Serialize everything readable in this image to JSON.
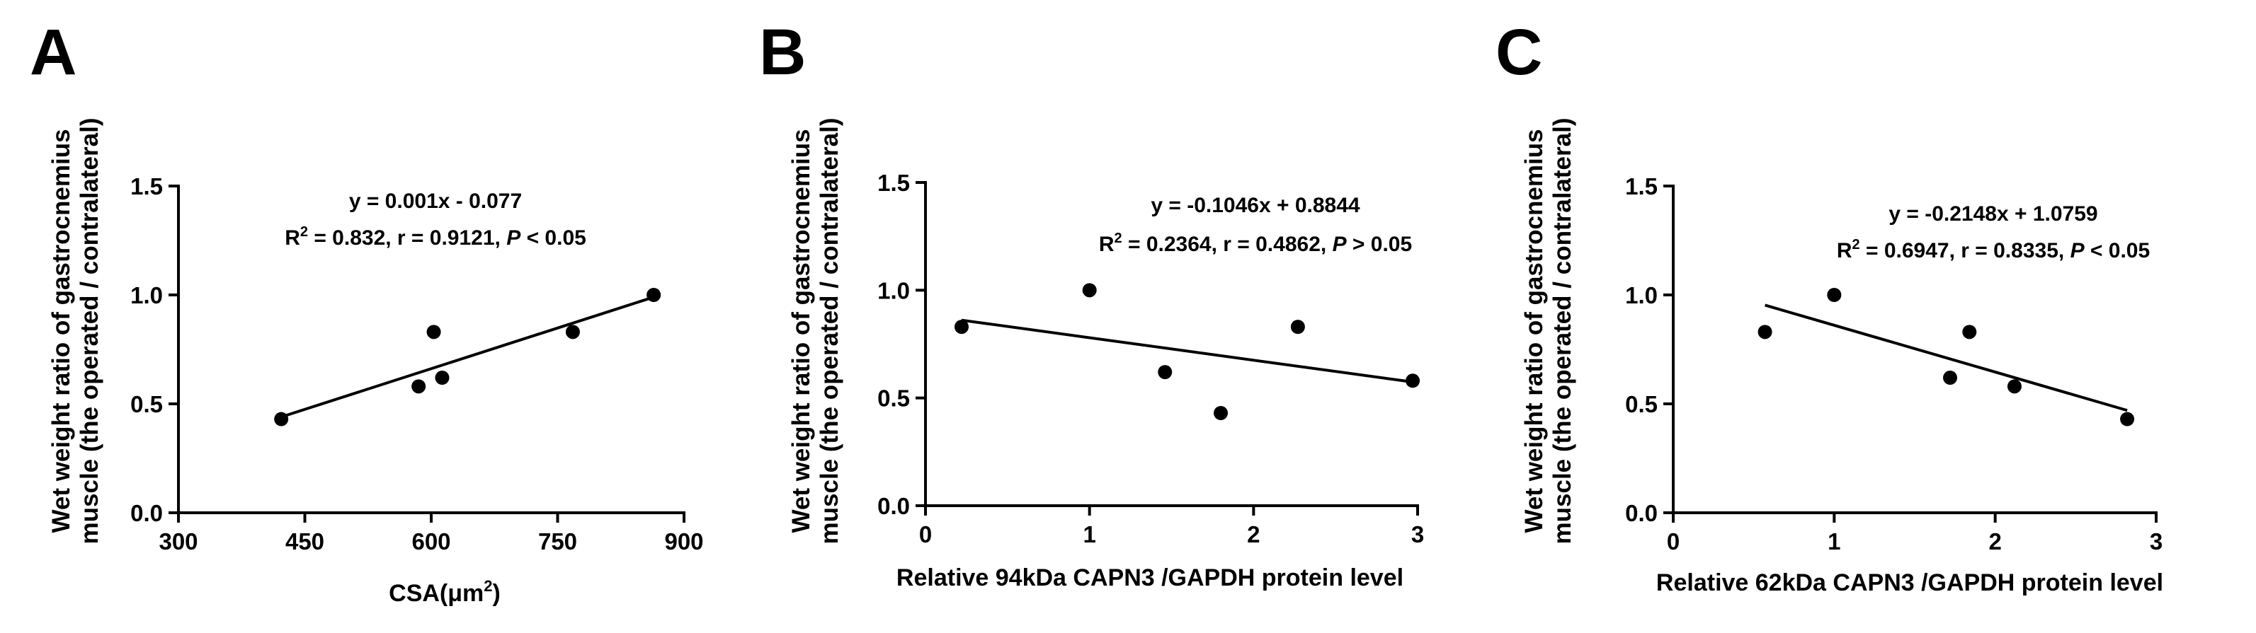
{
  "chart_data": [
    {
      "type": "scatter",
      "panel_label": "A",
      "ylabel_line1": "Wet weight ratio of gastrocnemius",
      "ylabel_line2": "muscle (the operated / contralateral)",
      "xlabel": "CSA(μm",
      "xlabel_sup": "2",
      "xlabel_tail": ")",
      "xlim": [
        300,
        900
      ],
      "ylim": [
        0.0,
        1.5
      ],
      "xticks": [
        300,
        450,
        600,
        750,
        900
      ],
      "yticks": [
        0.0,
        0.5,
        1.0,
        1.5
      ],
      "xtick_labels": [
        "300",
        "450",
        "600",
        "750",
        "900"
      ],
      "ytick_labels": [
        "0.0",
        "0.5",
        "1.0",
        "1.5"
      ],
      "points": [
        {
          "x": 422,
          "y": 0.43
        },
        {
          "x": 585,
          "y": 0.58
        },
        {
          "x": 603,
          "y": 0.83
        },
        {
          "x": 613,
          "y": 0.62
        },
        {
          "x": 768,
          "y": 0.83
        },
        {
          "x": 864,
          "y": 1.0
        }
      ],
      "fit": {
        "x1": 422,
        "y1": 0.44,
        "x2": 864,
        "y2": 0.99
      },
      "annotation": {
        "line1": "y = 0.001x - 0.077",
        "r_label": "R",
        "r_sup": "2",
        "line2_stats": " = 0.832, r = 0.9121, ",
        "p_label": "P",
        "line2_tail": " < 0.05"
      }
    },
    {
      "type": "scatter",
      "panel_label": "B",
      "ylabel_line1": "Wet weight ratio of gastrocnemius",
      "ylabel_line2": "muscle (the operated / contralateral)",
      "xlabel": "Relative 94kDa CAPN3 /GAPDH protein level",
      "xlim": [
        0,
        3
      ],
      "ylim": [
        0.0,
        1.5
      ],
      "xticks": [
        0,
        1,
        2,
        3
      ],
      "yticks": [
        0.0,
        0.5,
        1.0,
        1.5
      ],
      "xtick_labels": [
        "0",
        "1",
        "2",
        "3"
      ],
      "ytick_labels": [
        "0.0",
        "0.5",
        "1.0",
        "1.5"
      ],
      "points": [
        {
          "x": 0.22,
          "y": 0.83
        },
        {
          "x": 1.0,
          "y": 1.0
        },
        {
          "x": 1.46,
          "y": 0.62
        },
        {
          "x": 1.8,
          "y": 0.43
        },
        {
          "x": 2.27,
          "y": 0.83
        },
        {
          "x": 2.97,
          "y": 0.58
        }
      ],
      "fit": {
        "x1": 0.22,
        "y1": 0.861,
        "x2": 2.97,
        "y2": 0.574
      },
      "annotation": {
        "line1": "y = -0.1046x + 0.8844",
        "r_label": "R",
        "r_sup": "2",
        "line2_stats": " = 0.2364, r = 0.4862, ",
        "p_label": "P",
        "line2_tail": " > 0.05"
      }
    },
    {
      "type": "scatter",
      "panel_label": "C",
      "ylabel_line1": "Wet weight ratio of gastrocnemius",
      "ylabel_line2": "muscle (the operated / contralateral)",
      "xlabel": "Relative 62kDa CAPN3 /GAPDH protein level",
      "xlim": [
        0,
        3
      ],
      "ylim": [
        0.0,
        1.5
      ],
      "xticks": [
        0,
        1,
        2,
        3
      ],
      "yticks": [
        0.0,
        0.5,
        1.0,
        1.5
      ],
      "xtick_labels": [
        "0",
        "1",
        "2",
        "3"
      ],
      "ytick_labels": [
        "0.0",
        "0.5",
        "1.0",
        "1.5"
      ],
      "points": [
        {
          "x": 0.57,
          "y": 0.83
        },
        {
          "x": 1.0,
          "y": 1.0
        },
        {
          "x": 1.72,
          "y": 0.62
        },
        {
          "x": 1.84,
          "y": 0.83
        },
        {
          "x": 2.12,
          "y": 0.58
        },
        {
          "x": 2.82,
          "y": 0.43
        }
      ],
      "fit": {
        "x1": 0.57,
        "y1": 0.953,
        "x2": 2.82,
        "y2": 0.47
      },
      "annotation": {
        "line1": "y = -0.2148x + 1.0759",
        "r_label": "R",
        "r_sup": "2",
        "line2_stats": " = 0.6947, r = 0.8335, ",
        "p_label": "P",
        "line2_tail": " < 0.05"
      }
    }
  ]
}
